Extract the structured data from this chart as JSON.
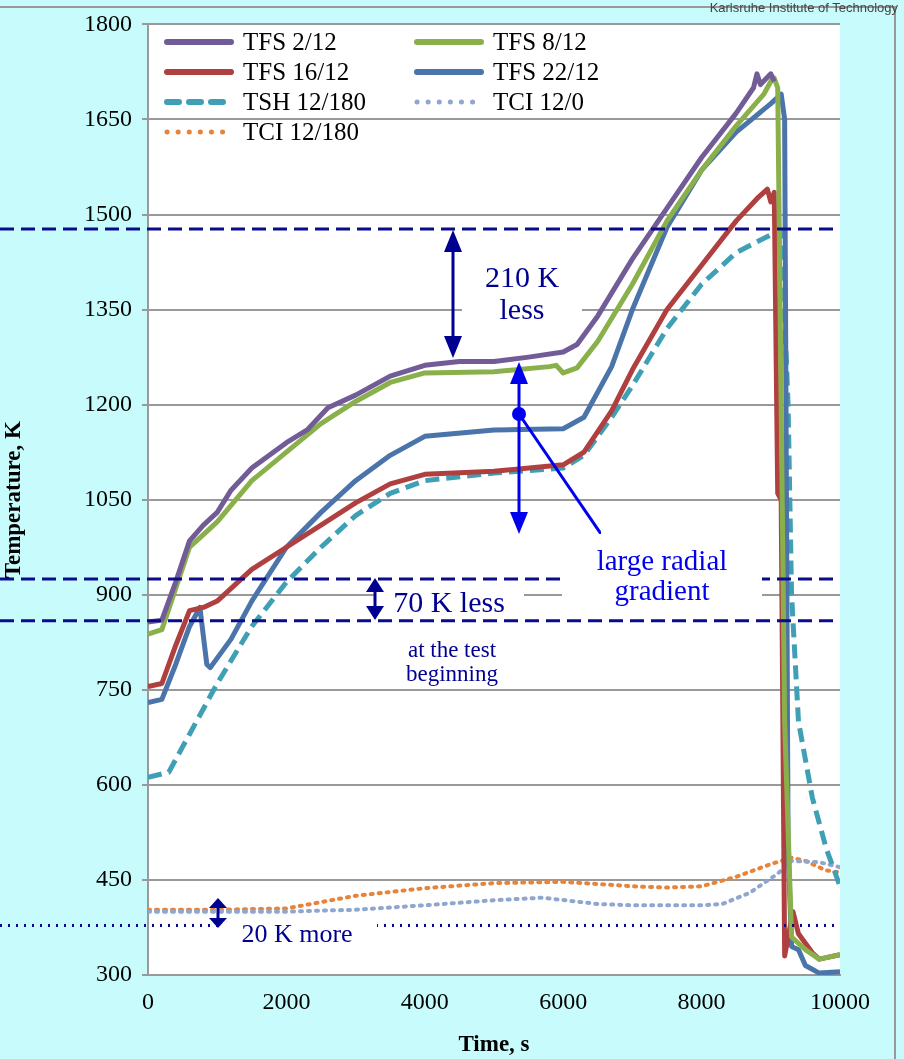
{
  "chart_data": {
    "type": "line",
    "xlabel": "Time, s",
    "ylabel": "Temperature, K",
    "xlim": [
      0,
      10000
    ],
    "xticks": [
      0,
      2000,
      4000,
      6000,
      8000,
      10000
    ],
    "ylim": [
      300,
      1800
    ],
    "yticks": [
      300,
      450,
      600,
      750,
      900,
      1050,
      1200,
      1350,
      1500,
      1650,
      1800
    ],
    "grid": "y",
    "legend": "top left",
    "marker": "none",
    "series": [
      {
        "name": "TFS 2/12",
        "color": "#725c97",
        "line_style": "solid",
        "x": [
          0,
          200,
          400,
          600,
          800,
          1000,
          1200,
          1500,
          2000,
          2300,
          2600,
          3000,
          3500,
          4000,
          4500,
          5000,
          5500,
          6000,
          6200,
          6500,
          7000,
          7500,
          8000,
          8500,
          8750,
          8800,
          8850,
          9000,
          9050
        ],
        "values": [
          857,
          860,
          920,
          985,
          1010,
          1030,
          1065,
          1100,
          1140,
          1160,
          1195,
          1215,
          1245,
          1262,
          1268,
          1268,
          1275,
          1283,
          1295,
          1340,
          1430,
          1510,
          1590,
          1660,
          1700,
          1722,
          1705,
          1722,
          1710
        ]
      },
      {
        "name": "TFS 8/12",
        "color": "#8ab04b",
        "line_style": "solid",
        "x": [
          0,
          200,
          400,
          600,
          800,
          1000,
          1500,
          2000,
          2500,
          3000,
          3500,
          4000,
          5000,
          5800,
          5900,
          6000,
          6200,
          6500,
          7000,
          7500,
          8000,
          8500,
          8900,
          9000,
          9050,
          9100,
          9200,
          9300,
          9500,
          9700,
          10000
        ],
        "values": [
          838,
          845,
          910,
          975,
          995,
          1015,
          1080,
          1125,
          1170,
          1205,
          1235,
          1250,
          1252,
          1260,
          1262,
          1250,
          1258,
          1300,
          1390,
          1490,
          1570,
          1640,
          1690,
          1710,
          1715,
          1700,
          700,
          360,
          340,
          325,
          332
        ]
      },
      {
        "name": "TFS 16/12",
        "color": "#b04040",
        "line_style": "solid",
        "x": [
          0,
          200,
          400,
          600,
          800,
          1000,
          1500,
          2000,
          2500,
          3000,
          3500,
          4000,
          5000,
          6000,
          6300,
          6700,
          7000,
          7500,
          8000,
          8500,
          8800,
          8950,
          9000,
          9050,
          9100,
          9150,
          9200,
          9320,
          9400,
          9600,
          9700,
          10000
        ],
        "values": [
          755,
          760,
          820,
          875,
          880,
          890,
          940,
          975,
          1010,
          1045,
          1075,
          1090,
          1095,
          1105,
          1125,
          1190,
          1255,
          1350,
          1420,
          1490,
          1525,
          1540,
          1520,
          1535,
          1060,
          1050,
          330,
          400,
          365,
          335,
          325,
          332
        ]
      },
      {
        "name": "TFS 22/12",
        "color": "#4a74aa",
        "line_style": "solid",
        "x": [
          0,
          200,
          400,
          600,
          750,
          850,
          900,
          1200,
          1500,
          2000,
          2500,
          3000,
          3500,
          4000,
          5000,
          6000,
          6300,
          6700,
          7000,
          7500,
          8000,
          8500,
          9000,
          9150,
          9200,
          9250,
          9300,
          9400,
          9500,
          9700,
          10000
        ],
        "values": [
          730,
          735,
          790,
          850,
          880,
          790,
          785,
          830,
          890,
          975,
          1030,
          1080,
          1120,
          1150,
          1160,
          1162,
          1180,
          1260,
          1350,
          1480,
          1570,
          1630,
          1675,
          1690,
          1650,
          500,
          345,
          340,
          315,
          303,
          305
        ]
      },
      {
        "name": "TSH 12/180",
        "color": "#3f9fb5",
        "line_style": "dashed",
        "x": [
          0,
          300,
          600,
          1000,
          1500,
          2000,
          2500,
          3000,
          3500,
          4000,
          5000,
          6000,
          6300,
          6700,
          7000,
          7500,
          8000,
          8500,
          9000,
          9150,
          9250,
          9300,
          9400,
          9600,
          9800,
          10000
        ],
        "values": [
          612,
          620,
          680,
          760,
          850,
          920,
          975,
          1025,
          1060,
          1080,
          1092,
          1100,
          1120,
          1180,
          1230,
          1320,
          1390,
          1440,
          1468,
          1475,
          1200,
          900,
          700,
          580,
          500,
          440
        ]
      },
      {
        "name": "TCI 12/0",
        "color": "#8fa6cf",
        "line_style": "dotted",
        "x": [
          0,
          2000,
          3000,
          4000,
          5000,
          5700,
          6500,
          7000,
          8000,
          8300,
          8700,
          9100,
          9300,
          9700,
          10000
        ],
        "values": [
          400,
          400,
          403,
          410,
          418,
          422,
          412,
          410,
          410,
          412,
          430,
          460,
          480,
          478,
          470
        ]
      },
      {
        "name": "TCI 12/180",
        "color": "#e6843a",
        "line_style": "dotted",
        "x": [
          0,
          1000,
          2000,
          2500,
          3000,
          4000,
          5000,
          6000,
          7000,
          7500,
          8000,
          8500,
          9000,
          9300,
          9500,
          9800,
          10000
        ],
        "values": [
          403,
          403,
          405,
          415,
          425,
          437,
          445,
          447,
          440,
          438,
          440,
          455,
          475,
          485,
          480,
          465,
          462
        ]
      }
    ],
    "ref_lines": [
      {
        "axis": "y",
        "value": 1477,
        "color": "#0a0a8c",
        "line_style": "dashed"
      },
      {
        "axis": "y",
        "value": 925,
        "color": "#0a0a8c",
        "line_style": "dashed"
      },
      {
        "axis": "y",
        "value": 859,
        "color": "#0a0a8c",
        "line_style": "dashed"
      },
      {
        "axis": "y",
        "value": 378,
        "color": "#0a0a8c",
        "line_style": "dotted"
      }
    ],
    "annotations": [
      "210 K less",
      "70 K less",
      "at the test beginning",
      "large radial gradient",
      "20 K more",
      "Karlsruhe Institute of Technology"
    ]
  }
}
